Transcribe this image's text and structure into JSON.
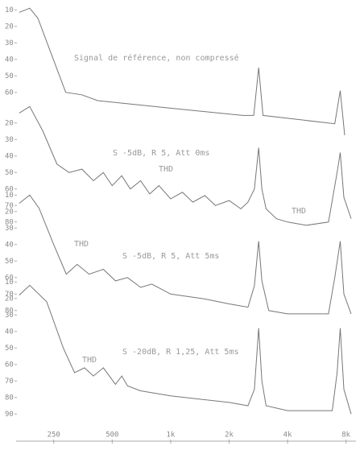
{
  "chart_data": [
    {
      "type": "line",
      "title": "Signal de référence, non compressé",
      "log_x": true,
      "color": "#777777",
      "x": [
        166,
        188,
        207,
        238,
        288,
        349,
        421,
        900,
        2350,
        2680,
        2840,
        2990,
        7000,
        7470,
        7870
      ],
      "values": [
        11.5,
        9,
        15,
        34,
        60,
        61.5,
        65,
        69,
        74,
        74,
        45,
        74,
        79,
        59,
        86
      ],
      "xlim": [
        160,
        9000
      ],
      "ylim": [
        5,
        88
      ],
      "yticks": [
        10,
        20,
        30,
        40,
        50,
        60
      ]
    },
    {
      "type": "line",
      "title": "S -5dB, R 5, Att 0ms",
      "annotations": [
        "THD",
        "THD"
      ],
      "log_x": true,
      "color": "#777777",
      "x": [
        166,
        188,
        220,
        260,
        300,
        349,
        400,
        450,
        500,
        560,
        620,
        700,
        780,
        870,
        1000,
        1150,
        1300,
        1500,
        1700,
        2000,
        2300,
        2500,
        2700,
        2840,
        2950,
        3100,
        3500,
        4000,
        5000,
        6500,
        7200,
        7470,
        7800,
        8500
      ],
      "values": [
        14,
        10,
        25,
        45,
        50,
        48,
        55,
        50,
        58,
        52,
        60,
        55,
        63,
        58,
        66,
        62,
        68,
        64,
        70,
        67,
        72,
        68,
        60,
        35,
        60,
        72,
        78,
        80,
        82,
        80,
        50,
        38,
        65,
        78
      ],
      "xlim": [
        160,
        9000
      ],
      "ylim": [
        5,
        90
      ],
      "yticks": [
        20,
        30,
        40,
        50,
        60,
        70,
        80
      ]
    },
    {
      "type": "line",
      "title": "S -5dB, R 5, Att 5ms",
      "annotations": [
        "THD"
      ],
      "log_x": true,
      "color": "#777777",
      "x": [
        166,
        188,
        210,
        250,
        290,
        330,
        380,
        450,
        520,
        600,
        700,
        800,
        1000,
        1500,
        2000,
        2500,
        2700,
        2840,
        2950,
        3200,
        4000,
        6500,
        7000,
        7470,
        7800,
        8500
      ],
      "values": [
        15,
        10,
        18,
        40,
        58,
        52,
        58,
        55,
        62,
        60,
        66,
        64,
        70,
        73,
        76,
        78,
        65,
        38,
        62,
        80,
        82,
        82,
        60,
        38,
        70,
        82
      ],
      "xlim": [
        160,
        9000
      ],
      "ylim": [
        5,
        90
      ],
      "yticks": [
        10,
        20,
        30,
        40,
        50,
        60,
        70,
        80
      ]
    },
    {
      "type": "line",
      "title": "S -20dB, R 1,25, Att 5ms",
      "annotations": [
        "THD"
      ],
      "log_x": true,
      "color": "#777777",
      "x": [
        166,
        188,
        230,
        280,
        320,
        360,
        400,
        450,
        520,
        560,
        600,
        700,
        1000,
        2000,
        2500,
        2700,
        2840,
        2950,
        3100,
        4000,
        6800,
        7200,
        7470,
        7800,
        8500
      ],
      "values": [
        18,
        12,
        22,
        50,
        65,
        62,
        67,
        62,
        72,
        67,
        73,
        76,
        79,
        83,
        85,
        75,
        38,
        70,
        85,
        88,
        88,
        65,
        38,
        75,
        90
      ],
      "xlim": [
        160,
        9000
      ],
      "ylim": [
        5,
        95
      ],
      "yticks": [
        10,
        20,
        30,
        40,
        50,
        60,
        70,
        80,
        90
      ],
      "xticks": [
        250,
        500,
        {
          "value": 1000,
          "label": "1k"
        },
        {
          "value": 2000,
          "label": "2k"
        },
        {
          "value": 4000,
          "label": "4k"
        },
        {
          "value": 8000,
          "label": "8k"
        }
      ]
    }
  ]
}
